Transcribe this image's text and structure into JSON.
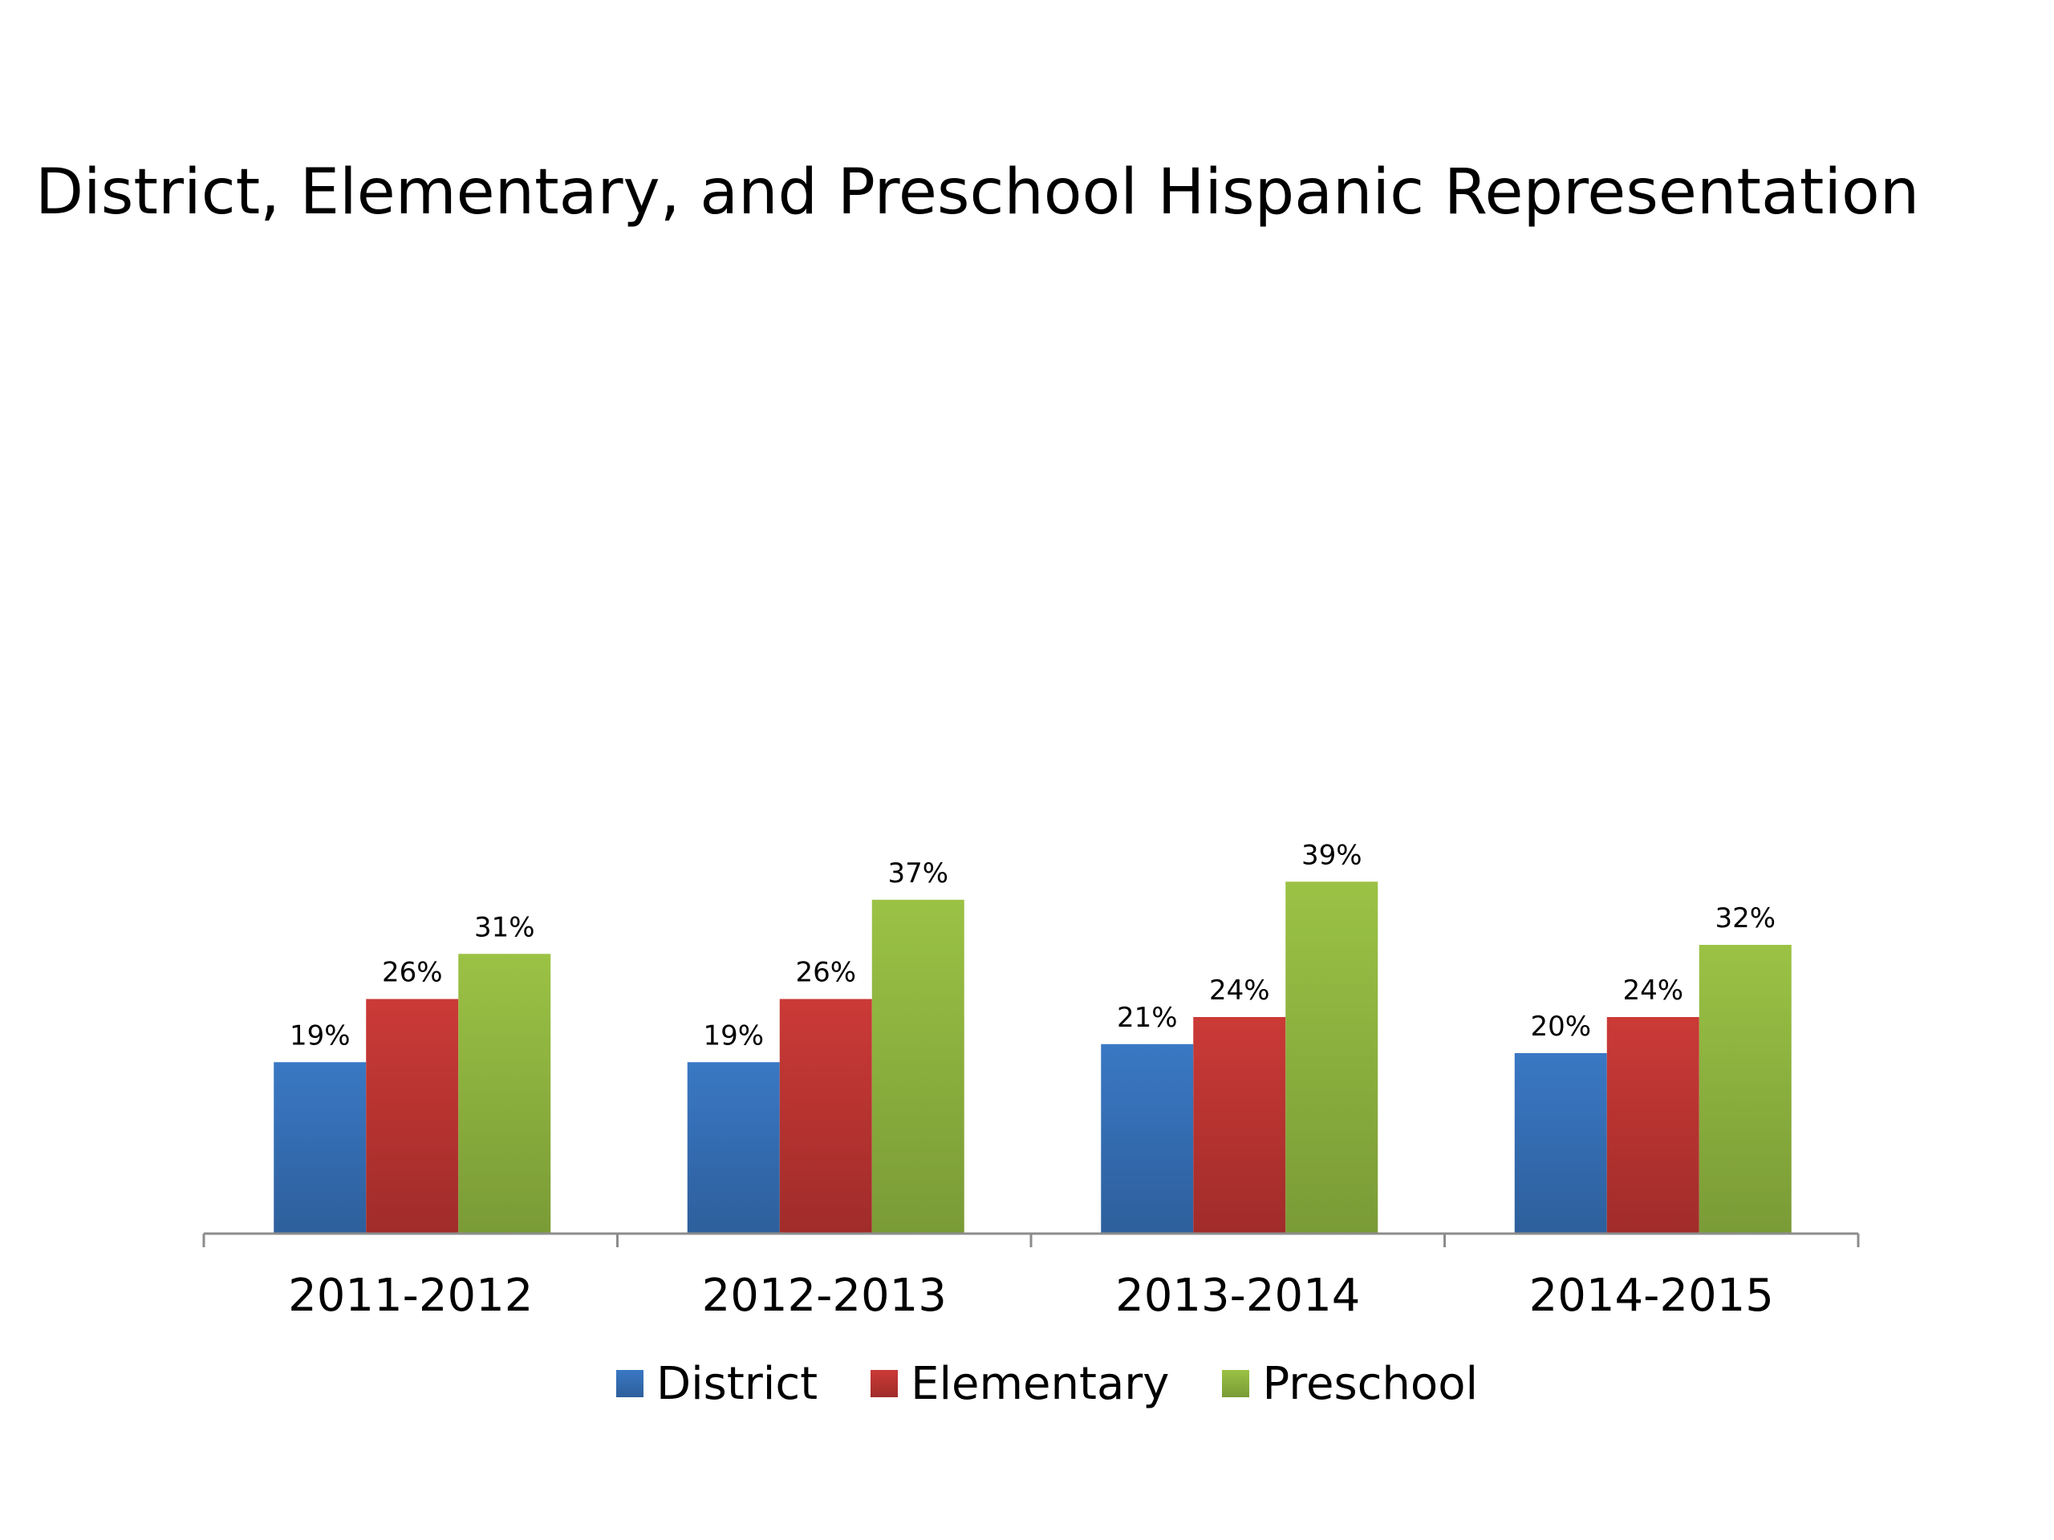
{
  "chart_data": {
    "type": "bar",
    "title": "District, Elementary, and Preschool Hispanic Representation",
    "categories": [
      "2011-2012",
      "2012-2013",
      "2013-2014",
      "2014-2015"
    ],
    "series": [
      {
        "name": "District",
        "values": [
          19,
          19,
          21,
          20
        ],
        "labels": [
          "19%",
          "19%",
          "21%",
          "20%"
        ],
        "color": "#3A78C4",
        "color_dark": "#2D5F9C"
      },
      {
        "name": "Elementary",
        "values": [
          26,
          26,
          24,
          24
        ],
        "labels": [
          "26%",
          "26%",
          "24%",
          "24%"
        ],
        "color": "#CB3A37",
        "color_dark": "#A02C2A"
      },
      {
        "name": "Preschool",
        "values": [
          31,
          37,
          39,
          32
        ],
        "labels": [
          "31%",
          "37%",
          "39%",
          "32%"
        ],
        "color": "#9BC245",
        "color_dark": "#7A9B36"
      }
    ],
    "ylim": [
      0,
      100
    ],
    "grid": false,
    "legend": "bottom",
    "xlabel": "",
    "ylabel": ""
  }
}
